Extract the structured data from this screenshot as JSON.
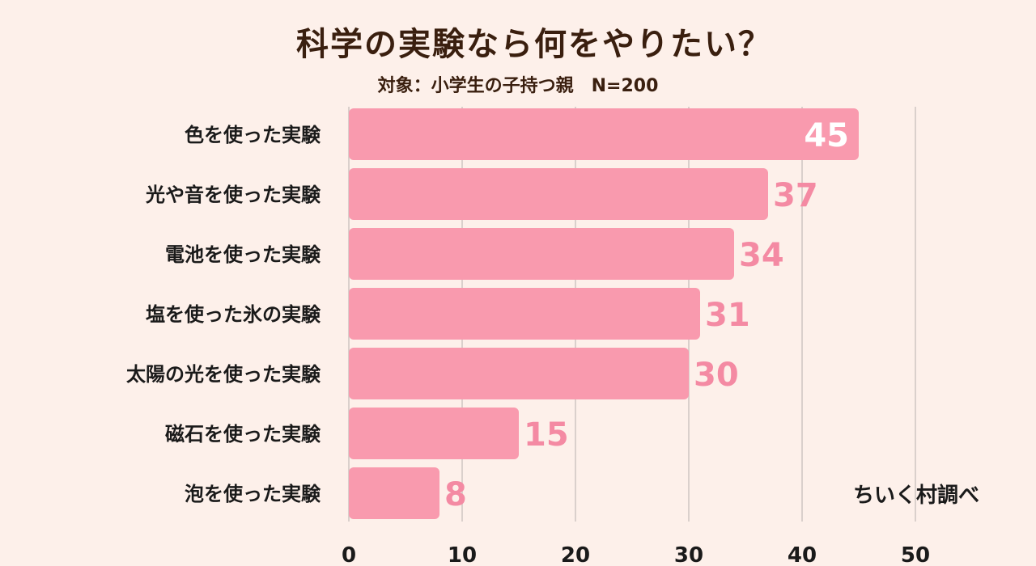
{
  "title": "科学の実験なら何をやりたい？",
  "subtitle": "対象：小学生の子持つ親　N=200",
  "source": "ちいく村調べ",
  "colors": {
    "background": "#fdf0ea",
    "bar": "#f99aae",
    "value_on_bar": "#ffffff",
    "value_outside": "#f48aa3",
    "grid": "#cfc6c2"
  },
  "chart_data": {
    "type": "bar",
    "orientation": "horizontal",
    "title": "科学の実験なら何をやりたい？",
    "subtitle": "対象：小学生の子持つ親　N=200",
    "categories": [
      "色を使った実験",
      "光や音を使った実験",
      "電池を使った実験",
      "塩を使った氷の実験",
      "太陽の光を使った実験",
      "磁石を使った実験",
      "泡を使った実験"
    ],
    "values": [
      45,
      37,
      34,
      31,
      30,
      15,
      8
    ],
    "xlim": [
      0,
      50
    ],
    "xticks": [
      0,
      10,
      20,
      30,
      40,
      50
    ],
    "grid": true,
    "legend": "none"
  }
}
